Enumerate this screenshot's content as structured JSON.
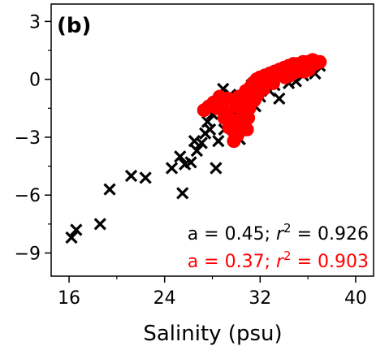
{
  "chart_data": {
    "type": "scatter",
    "panel_label": "(b)",
    "xlabel": "Salinity (psu)",
    "ylabel": "",
    "xlim": [
      14.5,
      41.5
    ],
    "ylim": [
      -10.2,
      3.9
    ],
    "x_ticks": [
      16,
      24,
      32,
      40
    ],
    "x_tick_labels": [
      "16",
      "24",
      "32",
      "40"
    ],
    "y_ticks": [
      3,
      0,
      -3,
      -6,
      -9
    ],
    "y_tick_labels": [
      "3",
      "0",
      "−3",
      "−6",
      "−9"
    ],
    "grid": false,
    "series": [
      {
        "marker": "x",
        "color": "#000000",
        "stat_prefix": "a = 0.45; ",
        "r2_symbol": "r",
        "stat_suffix": " = 0.926",
        "points": [
          [
            16.2,
            -8.2
          ],
          [
            16.6,
            -7.8
          ],
          [
            18.6,
            -7.5
          ],
          [
            19.4,
            -5.7
          ],
          [
            21.2,
            -5.0
          ],
          [
            22.4,
            -5.1
          ],
          [
            24.6,
            -4.6
          ],
          [
            25.3,
            -4.0
          ],
          [
            25.5,
            -5.9
          ],
          [
            25.7,
            -4.4
          ],
          [
            26.2,
            -4.3
          ],
          [
            26.7,
            -3.7
          ],
          [
            27.1,
            -3.3
          ],
          [
            27.4,
            -2.8
          ],
          [
            27.8,
            -2.6
          ],
          [
            28.3,
            -4.6
          ],
          [
            28.5,
            -3.2
          ],
          [
            26.5,
            -3.2
          ],
          [
            27.6,
            -2.2
          ],
          [
            28.0,
            -1.8
          ],
          [
            28.6,
            -1.3
          ],
          [
            29.0,
            -2.6
          ],
          [
            29.4,
            -2.2
          ],
          [
            29.7,
            -1.7
          ],
          [
            30.0,
            -1.0
          ],
          [
            30.3,
            -3.1
          ],
          [
            30.6,
            -2.4
          ],
          [
            31.0,
            -0.7
          ],
          [
            31.3,
            -0.3
          ],
          [
            31.6,
            -1.4
          ],
          [
            32.0,
            -0.9
          ],
          [
            32.4,
            0.0
          ],
          [
            32.8,
            -0.6
          ],
          [
            33.2,
            -0.3
          ],
          [
            33.6,
            -1.0
          ],
          [
            34.0,
            0.2
          ],
          [
            34.4,
            -0.2
          ],
          [
            34.8,
            0.4
          ],
          [
            35.2,
            0.5
          ],
          [
            35.6,
            0.2
          ],
          [
            36.0,
            0.6
          ],
          [
            36.3,
            0.8
          ],
          [
            36.6,
            0.3
          ],
          [
            37.0,
            0.7
          ],
          [
            33.5,
            0.3
          ],
          [
            31.0,
            -1.8
          ],
          [
            29.5,
            -0.8
          ],
          [
            30.5,
            -1.6
          ],
          [
            28.9,
            -0.5
          ],
          [
            35.0,
            -0.1
          ]
        ]
      },
      {
        "marker": "o",
        "color": "#ff0000",
        "stat_prefix": "a = 0.37; ",
        "r2_symbol": "r",
        "stat_suffix": " = 0.903",
        "points": [
          [
            27.3,
            -1.6
          ],
          [
            27.7,
            -1.4
          ],
          [
            28.1,
            -1.2
          ],
          [
            28.4,
            -1.5
          ],
          [
            28.8,
            -1.3
          ],
          [
            29.0,
            -2.0
          ],
          [
            29.2,
            -1.7
          ],
          [
            29.4,
            -2.5
          ],
          [
            29.6,
            -2.1
          ],
          [
            29.8,
            -3.2
          ],
          [
            29.9,
            -2.8
          ],
          [
            30.0,
            -1.4
          ],
          [
            30.2,
            -0.9
          ],
          [
            30.4,
            -2.3
          ],
          [
            30.5,
            -1.8
          ],
          [
            30.7,
            -1.2
          ],
          [
            30.8,
            -0.6
          ],
          [
            31.0,
            -2.0
          ],
          [
            31.1,
            -1.5
          ],
          [
            31.2,
            -0.4
          ],
          [
            31.4,
            -0.2
          ],
          [
            31.5,
            -1.1
          ],
          [
            31.7,
            0.0
          ],
          [
            31.9,
            -0.5
          ],
          [
            32.0,
            0.1
          ],
          [
            32.2,
            -0.2
          ],
          [
            32.4,
            0.2
          ],
          [
            32.6,
            0.0
          ],
          [
            32.8,
            0.3
          ],
          [
            33.0,
            0.1
          ],
          [
            33.2,
            0.4
          ],
          [
            33.4,
            0.2
          ],
          [
            33.6,
            0.5
          ],
          [
            33.8,
            0.3
          ],
          [
            34.0,
            0.6
          ],
          [
            34.2,
            0.4
          ],
          [
            34.4,
            0.7
          ],
          [
            34.6,
            0.5
          ],
          [
            34.8,
            0.8
          ],
          [
            35.0,
            0.6
          ],
          [
            35.2,
            0.8
          ],
          [
            35.4,
            0.7
          ],
          [
            35.6,
            0.9
          ],
          [
            35.8,
            0.7
          ],
          [
            36.0,
            0.9
          ],
          [
            36.2,
            0.8
          ],
          [
            36.4,
            1.0
          ],
          [
            36.6,
            0.8
          ],
          [
            36.8,
            0.9
          ],
          [
            37.0,
            0.9
          ],
          [
            31.3,
            -0.9
          ],
          [
            30.9,
            -2.6
          ],
          [
            30.1,
            -2.9
          ],
          [
            31.8,
            -0.8
          ],
          [
            32.3,
            -0.5
          ],
          [
            33.1,
            -0.2
          ],
          [
            34.1,
            0.1
          ],
          [
            35.1,
            0.4
          ],
          [
            36.1,
            0.5
          ],
          [
            30.3,
            -1.2
          ],
          [
            29.3,
            -1.0
          ],
          [
            28.6,
            -0.9
          ],
          [
            32.9,
            -0.1
          ],
          [
            34.5,
            0.2
          ],
          [
            35.7,
            0.4
          ]
        ]
      }
    ]
  }
}
